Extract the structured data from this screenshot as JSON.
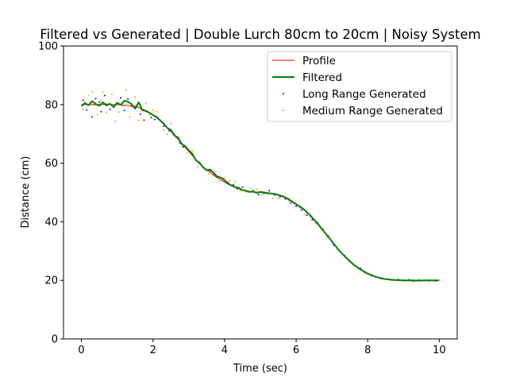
{
  "chart_data": {
    "type": "line",
    "title": "Filtered vs Generated | Double Lurch 80cm to 20cm | Noisy System",
    "xlabel": "Time (sec)",
    "ylabel": "Distance (cm)",
    "xlim": [
      -0.5,
      10.5
    ],
    "ylim": [
      0,
      100
    ],
    "xticks": [
      0,
      2,
      4,
      6,
      8,
      10
    ],
    "yticks": [
      0,
      20,
      40,
      60,
      80,
      100
    ],
    "grid": false,
    "legend_position": "top-right",
    "series": [
      {
        "name": "Profile",
        "kind": "line",
        "color": "#ff0000",
        "x": [
          0,
          0.5,
          1.0,
          1.5,
          1.8,
          2.0,
          2.2,
          2.4,
          2.6,
          2.8,
          3.0,
          3.2,
          3.4,
          3.6,
          3.8,
          4.0,
          4.2,
          4.4,
          4.6,
          4.8,
          5.0,
          5.2,
          5.4,
          5.6,
          5.8,
          6.0,
          6.2,
          6.4,
          6.6,
          6.8,
          7.0,
          7.2,
          7.4,
          7.6,
          7.8,
          8.0,
          8.2,
          8.4,
          8.6,
          8.8,
          9.0,
          9.5,
          10.0
        ],
        "y": [
          80,
          80,
          80,
          79.5,
          78,
          76.5,
          74.5,
          72,
          69.5,
          66.8,
          64,
          61.2,
          58.8,
          56.8,
          55,
          53.5,
          52.2,
          51.2,
          50.6,
          50.2,
          50,
          49.9,
          49.6,
          49,
          47.8,
          46,
          44.5,
          42,
          39.2,
          36.2,
          33.2,
          30.2,
          27.6,
          25.4,
          23.6,
          22.2,
          21.2,
          20.6,
          20.2,
          20.05,
          20,
          20,
          20
        ]
      },
      {
        "name": "Filtered",
        "kind": "line",
        "color": "#008000",
        "x": [
          0,
          0.1,
          0.2,
          0.3,
          0.4,
          0.5,
          0.6,
          0.7,
          0.8,
          0.9,
          1.0,
          1.1,
          1.2,
          1.3,
          1.4,
          1.5,
          1.6,
          1.7,
          1.8,
          1.9,
          2.0,
          2.1,
          2.2,
          2.3,
          2.4,
          2.5,
          2.6,
          2.7,
          2.8,
          2.9,
          3.0,
          3.1,
          3.2,
          3.3,
          3.4,
          3.5,
          3.6,
          3.7,
          3.8,
          3.9,
          4.0,
          4.1,
          4.2,
          4.3,
          4.4,
          4.5,
          4.6,
          4.7,
          4.8,
          4.9,
          5.0,
          5.2,
          5.4,
          5.6,
          5.8,
          6.0,
          6.2,
          6.4,
          6.6,
          6.8,
          7.0,
          7.2,
          7.4,
          7.6,
          7.8,
          8.0,
          8.2,
          8.4,
          8.6,
          8.8,
          9.0,
          9.2,
          9.4,
          9.6,
          9.8,
          10.0
        ],
        "y": [
          79.5,
          80.5,
          79.8,
          81.2,
          80.2,
          79.6,
          80.8,
          79.7,
          80.3,
          79.2,
          80.6,
          79.9,
          81.3,
          81.0,
          80.2,
          78.6,
          80.8,
          78.2,
          77.8,
          77.2,
          76.4,
          75.8,
          74.6,
          73.6,
          72.0,
          71.4,
          69.4,
          68.8,
          66.6,
          65.8,
          64.4,
          63.2,
          61.0,
          60.2,
          58.6,
          57.6,
          57.8,
          56.6,
          55.4,
          55.0,
          54.2,
          53.0,
          52.4,
          51.8,
          51.6,
          50.8,
          50.6,
          50.2,
          50.3,
          49.9,
          50.2,
          49.8,
          49.5,
          48.8,
          47.6,
          46.0,
          44.4,
          42.1,
          39.4,
          36.3,
          33.3,
          30.2,
          27.7,
          25.4,
          23.7,
          22.3,
          21.3,
          20.6,
          20.3,
          20.1,
          20.0,
          20.0,
          19.9,
          20.0,
          20.0,
          20.0
        ]
      },
      {
        "name": "Long Range Generated",
        "kind": "scatter",
        "color": "#0000ff",
        "x": [
          0.05,
          0.15,
          0.25,
          0.3,
          0.4,
          0.5,
          0.55,
          0.65,
          0.7,
          0.8,
          0.9,
          1.0,
          1.1,
          1.2,
          1.3,
          1.4,
          1.55,
          1.65,
          1.75,
          1.85,
          1.95,
          2.05,
          2.3,
          2.45,
          2.6,
          2.75,
          2.85,
          3.0,
          3.15,
          3.3,
          3.45,
          3.6,
          3.7,
          3.85,
          3.95,
          4.1,
          4.25,
          4.35,
          4.5,
          4.65,
          4.8,
          4.95,
          5.1,
          5.25,
          5.4,
          5.55,
          5.7,
          5.85,
          6.0,
          6.15,
          6.3,
          6.45,
          6.6,
          6.75,
          6.9,
          7.05,
          7.2,
          7.35,
          7.5,
          7.65,
          7.8,
          7.95,
          8.1,
          8.25,
          8.4,
          8.55,
          8.7,
          8.85,
          9.0,
          9.15,
          9.3,
          9.45,
          9.6,
          9.75,
          9.9
        ],
        "y": [
          81.5,
          78.2,
          80.6,
          75.8,
          82.0,
          80.9,
          77.6,
          83.1,
          80.1,
          78.4,
          79.1,
          80.6,
          82.3,
          78.0,
          81.9,
          79.5,
          79.2,
          76.8,
          74.7,
          77.6,
          75.6,
          74.9,
          72.6,
          71.1,
          69.9,
          66.9,
          65.6,
          64.2,
          62.0,
          59.9,
          58.1,
          57.4,
          56.1,
          55.4,
          54.8,
          53.4,
          52.6,
          51.3,
          51.9,
          50.3,
          50.6,
          49.3,
          49.7,
          50.6,
          49.2,
          48.5,
          47.8,
          46.4,
          45.3,
          44.0,
          42.2,
          40.7,
          39.6,
          37.4,
          35.2,
          32.0,
          30.1,
          28.5,
          26.5,
          24.9,
          24.1,
          22.6,
          21.6,
          21.1,
          20.7,
          20.4,
          20.1,
          20.3,
          19.9,
          20.2,
          19.8,
          20.1,
          19.9,
          20.0,
          19.8
        ]
      },
      {
        "name": "Medium Range Generated",
        "kind": "scatter",
        "color": "#ffa500",
        "x": [
          0.05,
          0.1,
          0.2,
          0.3,
          0.35,
          0.45,
          0.55,
          0.6,
          0.7,
          0.8,
          0.85,
          0.95,
          1.05,
          1.15,
          1.25,
          1.35,
          1.45,
          1.5,
          1.6,
          1.7,
          1.8,
          1.9,
          2.0,
          2.1,
          2.2,
          2.3,
          2.4,
          2.5,
          2.65,
          2.8,
          2.95,
          3.1,
          3.25,
          3.4,
          3.55,
          3.7,
          3.85,
          4.0,
          4.15,
          4.3,
          4.45,
          4.6,
          4.75,
          4.9,
          5.05,
          5.2,
          5.35,
          5.5,
          5.65,
          5.8,
          5.95,
          6.1,
          6.25,
          6.4,
          6.55,
          6.7,
          6.85,
          7.0,
          7.15,
          7.3,
          7.45,
          7.6,
          7.75,
          7.9,
          8.05,
          8.2,
          8.35,
          8.5,
          8.65,
          8.8,
          8.95,
          9.1,
          9.25,
          9.4,
          9.55,
          9.7,
          9.85
        ],
        "y": [
          78.4,
          80.8,
          83.1,
          84.3,
          79.8,
          76.6,
          81.6,
          84.2,
          77.3,
          80.2,
          83.6,
          74.3,
          77.4,
          79.6,
          85.0,
          75.8,
          79.2,
          82.6,
          74.6,
          77.8,
          80.4,
          76.6,
          78.1,
          77.6,
          74.8,
          71.3,
          69.9,
          73.4,
          68.6,
          65.6,
          63.4,
          64.2,
          58.7,
          58.6,
          56.3,
          56.9,
          53.8,
          54.9,
          54.0,
          53.6,
          50.6,
          50.2,
          51.4,
          50.9,
          49.2,
          49.4,
          47.9,
          48.0,
          48.5,
          47.0,
          46.1,
          44.8,
          42.5,
          41.6,
          39.4,
          37.6,
          34.6,
          33.1,
          30.6,
          29.0,
          26.9,
          25.7,
          23.9,
          22.5,
          22.2,
          21.4,
          20.6,
          20.3,
          20.0,
          20.1,
          20.2,
          19.9,
          19.6,
          20.2,
          20.0,
          19.6,
          19.8
        ]
      }
    ]
  }
}
